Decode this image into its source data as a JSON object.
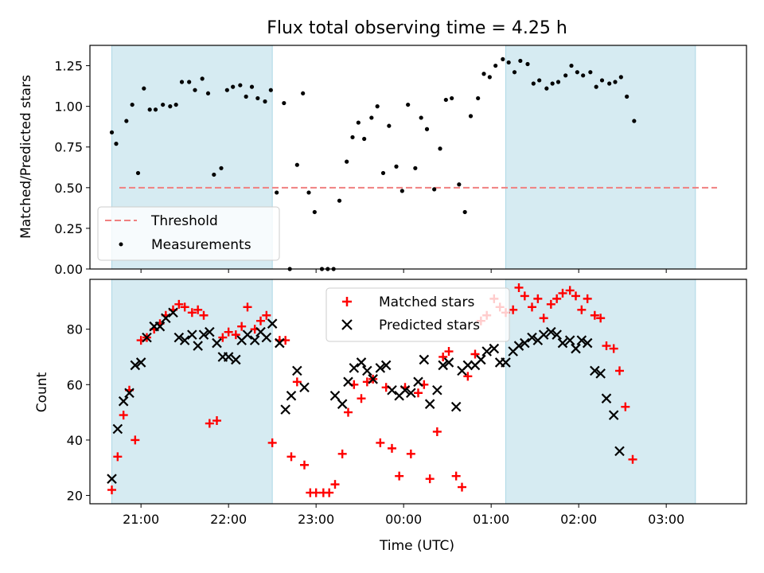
{
  "title": "Flux total observing time = 4.25 h",
  "chart_data": [
    {
      "type": "scatter",
      "ylabel": "Matched/Predicted stars",
      "ylim": [
        0,
        1.375
      ],
      "yticks": [
        "0.00",
        "0.25",
        "0.50",
        "0.75",
        "1.00",
        "1.25"
      ],
      "xlim": [
        "20:25",
        "03:55"
      ],
      "xticks": [
        "21:00",
        "22:00",
        "23:00",
        "00:00",
        "01:00",
        "02:00",
        "03:00"
      ],
      "shaded_spans": [
        [
          "20:40",
          "22:30"
        ],
        [
          "01:10",
          "03:20"
        ]
      ],
      "threshold": {
        "name": "Threshold",
        "value": 0.5,
        "color": "#f08080"
      },
      "legend": {
        "placement": "lower-left",
        "entries": [
          "Threshold",
          "Measurements"
        ]
      },
      "series": [
        {
          "name": "Measurements",
          "color": "#000000",
          "points": [
            [
              "20:40",
              0.84
            ],
            [
              "20:43",
              0.77
            ],
            [
              "20:50",
              0.91
            ],
            [
              "20:54",
              1.01
            ],
            [
              "20:58",
              0.59
            ],
            [
              "21:02",
              1.11
            ],
            [
              "21:06",
              0.98
            ],
            [
              "21:10",
              0.98
            ],
            [
              "21:15",
              1.01
            ],
            [
              "21:20",
              1.0
            ],
            [
              "21:24",
              1.01
            ],
            [
              "21:28",
              1.15
            ],
            [
              "21:33",
              1.15
            ],
            [
              "21:37",
              1.1
            ],
            [
              "21:42",
              1.17
            ],
            [
              "21:46",
              1.08
            ],
            [
              "21:50",
              0.58
            ],
            [
              "21:55",
              0.62
            ],
            [
              "21:59",
              1.1
            ],
            [
              "22:03",
              1.12
            ],
            [
              "22:08",
              1.13
            ],
            [
              "22:12",
              1.06
            ],
            [
              "22:16",
              1.12
            ],
            [
              "22:20",
              1.05
            ],
            [
              "22:25",
              1.03
            ],
            [
              "22:29",
              1.1
            ],
            [
              "22:33",
              0.47
            ],
            [
              "22:38",
              1.02
            ],
            [
              "22:42",
              0.0
            ],
            [
              "22:47",
              0.64
            ],
            [
              "22:51",
              1.08
            ],
            [
              "22:55",
              0.47
            ],
            [
              "22:59",
              0.35
            ],
            [
              "23:04",
              0.0
            ],
            [
              "23:08",
              0.0
            ],
            [
              "23:12",
              0.0
            ],
            [
              "23:16",
              0.42
            ],
            [
              "23:21",
              0.66
            ],
            [
              "23:25",
              0.81
            ],
            [
              "23:29",
              0.9
            ],
            [
              "23:33",
              0.8
            ],
            [
              "23:38",
              0.93
            ],
            [
              "23:42",
              1.0
            ],
            [
              "23:46",
              0.59
            ],
            [
              "23:50",
              0.88
            ],
            [
              "23:55",
              0.63
            ],
            [
              "23:59",
              0.48
            ],
            [
              "00:03",
              1.01
            ],
            [
              "00:08",
              0.62
            ],
            [
              "00:12",
              0.93
            ],
            [
              "00:16",
              0.86
            ],
            [
              "00:21",
              0.49
            ],
            [
              "00:25",
              0.74
            ],
            [
              "00:29",
              1.04
            ],
            [
              "00:33",
              1.05
            ],
            [
              "00:38",
              0.52
            ],
            [
              "00:42",
              0.35
            ],
            [
              "00:46",
              0.94
            ],
            [
              "00:51",
              1.05
            ],
            [
              "00:55",
              1.2
            ],
            [
              "00:59",
              1.18
            ],
            [
              "01:03",
              1.25
            ],
            [
              "01:08",
              1.29
            ],
            [
              "01:12",
              1.27
            ],
            [
              "01:16",
              1.21
            ],
            [
              "01:20",
              1.28
            ],
            [
              "01:25",
              1.26
            ],
            [
              "01:29",
              1.14
            ],
            [
              "01:33",
              1.16
            ],
            [
              "01:38",
              1.11
            ],
            [
              "01:42",
              1.14
            ],
            [
              "01:46",
              1.15
            ],
            [
              "01:51",
              1.19
            ],
            [
              "01:55",
              1.25
            ],
            [
              "01:59",
              1.21
            ],
            [
              "02:03",
              1.19
            ],
            [
              "02:08",
              1.21
            ],
            [
              "02:12",
              1.12
            ],
            [
              "02:16",
              1.16
            ],
            [
              "02:21",
              1.14
            ],
            [
              "02:25",
              1.15
            ],
            [
              "02:29",
              1.18
            ],
            [
              "02:33",
              1.06
            ],
            [
              "02:38",
              0.91
            ]
          ]
        }
      ]
    },
    {
      "type": "scatter",
      "xlabel": "Time (UTC)",
      "ylabel": "Count",
      "ylim": [
        17,
        98
      ],
      "yticks": [
        "20",
        "40",
        "60",
        "80"
      ],
      "xlim": [
        "20:25",
        "03:55"
      ],
      "xticks": [
        "21:00",
        "22:00",
        "23:00",
        "00:00",
        "01:00",
        "02:00",
        "03:00"
      ],
      "shaded_spans": [
        [
          "20:40",
          "22:30"
        ],
        [
          "01:10",
          "03:20"
        ]
      ],
      "legend": {
        "placement": "top-center",
        "entries": [
          "Matched stars",
          "Predicted stars"
        ]
      },
      "series": [
        {
          "name": "Matched stars",
          "marker": "plus",
          "color": "#ff0000",
          "points": [
            [
              "20:40",
              22
            ],
            [
              "20:44",
              34
            ],
            [
              "20:48",
              49
            ],
            [
              "20:52",
              58
            ],
            [
              "20:56",
              40
            ],
            [
              "21:00",
              76
            ],
            [
              "21:04",
              77
            ],
            [
              "21:09",
              80
            ],
            [
              "21:13",
              82
            ],
            [
              "21:17",
              85
            ],
            [
              "21:22",
              87
            ],
            [
              "21:26",
              89
            ],
            [
              "21:30",
              88
            ],
            [
              "21:35",
              86
            ],
            [
              "21:39",
              87
            ],
            [
              "21:43",
              85
            ],
            [
              "21:47",
              46
            ],
            [
              "21:52",
              47
            ],
            [
              "21:56",
              77
            ],
            [
              "22:00",
              79
            ],
            [
              "22:05",
              78
            ],
            [
              "22:09",
              81
            ],
            [
              "22:13",
              88
            ],
            [
              "22:18",
              80
            ],
            [
              "22:22",
              83
            ],
            [
              "22:26",
              85
            ],
            [
              "22:30",
              39
            ],
            [
              "22:35",
              76
            ],
            [
              "22:39",
              76
            ],
            [
              "22:43",
              34
            ],
            [
              "22:47",
              61
            ],
            [
              "22:52",
              31
            ],
            [
              "22:56",
              21
            ],
            [
              "23:00",
              21
            ],
            [
              "23:05",
              21
            ],
            [
              "23:09",
              21
            ],
            [
              "23:13",
              24
            ],
            [
              "23:18",
              35
            ],
            [
              "23:22",
              50
            ],
            [
              "23:26",
              60
            ],
            [
              "23:31",
              55
            ],
            [
              "23:35",
              61
            ],
            [
              "23:39",
              62
            ],
            [
              "23:44",
              39
            ],
            [
              "23:48",
              59
            ],
            [
              "23:52",
              37
            ],
            [
              "23:57",
              27
            ],
            [
              "00:01",
              59
            ],
            [
              "00:05",
              35
            ],
            [
              "00:10",
              57
            ],
            [
              "00:14",
              60
            ],
            [
              "00:18",
              26
            ],
            [
              "00:23",
              43
            ],
            [
              "00:27",
              70
            ],
            [
              "00:31",
              72
            ],
            [
              "00:36",
              27
            ],
            [
              "00:40",
              23
            ],
            [
              "00:44",
              63
            ],
            [
              "00:49",
              71
            ],
            [
              "00:53",
              83
            ],
            [
              "00:57",
              85
            ],
            [
              "01:02",
              91
            ],
            [
              "01:06",
              88
            ],
            [
              "01:10",
              86
            ],
            [
              "01:15",
              87
            ],
            [
              "01:19",
              95
            ],
            [
              "01:23",
              92
            ],
            [
              "01:28",
              88
            ],
            [
              "01:32",
              91
            ],
            [
              "01:36",
              84
            ],
            [
              "01:41",
              89
            ],
            [
              "01:45",
              91
            ],
            [
              "01:49",
              93
            ],
            [
              "01:54",
              94
            ],
            [
              "01:58",
              92
            ],
            [
              "02:02",
              87
            ],
            [
              "02:06",
              91
            ],
            [
              "02:11",
              85
            ],
            [
              "02:15",
              84
            ],
            [
              "02:19",
              74
            ],
            [
              "02:24",
              73
            ],
            [
              "02:28",
              65
            ],
            [
              "02:32",
              52
            ],
            [
              "02:37",
              33
            ]
          ]
        },
        {
          "name": "Predicted stars",
          "marker": "x",
          "color": "#000000",
          "points": [
            [
              "20:40",
              26
            ],
            [
              "20:44",
              44
            ],
            [
              "20:48",
              54
            ],
            [
              "20:52",
              57
            ],
            [
              "20:56",
              67
            ],
            [
              "21:00",
              68
            ],
            [
              "21:04",
              77
            ],
            [
              "21:09",
              81
            ],
            [
              "21:13",
              81
            ],
            [
              "21:17",
              84
            ],
            [
              "21:22",
              86
            ],
            [
              "21:26",
              77
            ],
            [
              "21:30",
              76
            ],
            [
              "21:35",
              78
            ],
            [
              "21:39",
              74
            ],
            [
              "21:43",
              78
            ],
            [
              "21:47",
              79
            ],
            [
              "21:52",
              75
            ],
            [
              "21:56",
              70
            ],
            [
              "22:00",
              70
            ],
            [
              "22:05",
              69
            ],
            [
              "22:09",
              76
            ],
            [
              "22:13",
              78
            ],
            [
              "22:18",
              76
            ],
            [
              "22:22",
              79
            ],
            [
              "22:26",
              77
            ],
            [
              "22:30",
              82
            ],
            [
              "22:35",
              75
            ],
            [
              "22:39",
              51
            ],
            [
              "22:43",
              56
            ],
            [
              "22:47",
              65
            ],
            [
              "22:52",
              59
            ],
            [
              "23:13",
              56
            ],
            [
              "23:18",
              53
            ],
            [
              "23:22",
              61
            ],
            [
              "23:26",
              66
            ],
            [
              "23:31",
              68
            ],
            [
              "23:35",
              65
            ],
            [
              "23:39",
              62
            ],
            [
              "23:44",
              66
            ],
            [
              "23:48",
              67
            ],
            [
              "23:52",
              58
            ],
            [
              "23:57",
              56
            ],
            [
              "00:01",
              58
            ],
            [
              "00:05",
              57
            ],
            [
              "00:10",
              61
            ],
            [
              "00:14",
              69
            ],
            [
              "00:18",
              53
            ],
            [
              "00:23",
              58
            ],
            [
              "00:27",
              67
            ],
            [
              "00:31",
              68
            ],
            [
              "00:36",
              52
            ],
            [
              "00:40",
              65
            ],
            [
              "00:44",
              67
            ],
            [
              "00:49",
              67
            ],
            [
              "00:53",
              69
            ],
            [
              "00:57",
              72
            ],
            [
              "01:02",
              73
            ],
            [
              "01:06",
              68
            ],
            [
              "01:10",
              68
            ],
            [
              "01:15",
              72
            ],
            [
              "01:19",
              74
            ],
            [
              "01:23",
              75
            ],
            [
              "01:28",
              77
            ],
            [
              "01:32",
              76
            ],
            [
              "01:36",
              78
            ],
            [
              "01:41",
              79
            ],
            [
              "01:45",
              78
            ],
            [
              "01:49",
              75
            ],
            [
              "01:54",
              76
            ],
            [
              "01:58",
              73
            ],
            [
              "02:02",
              76
            ],
            [
              "02:06",
              75
            ],
            [
              "02:11",
              65
            ],
            [
              "02:15",
              64
            ],
            [
              "02:19",
              55
            ],
            [
              "02:24",
              49
            ],
            [
              "02:28",
              36
            ]
          ]
        }
      ]
    }
  ]
}
